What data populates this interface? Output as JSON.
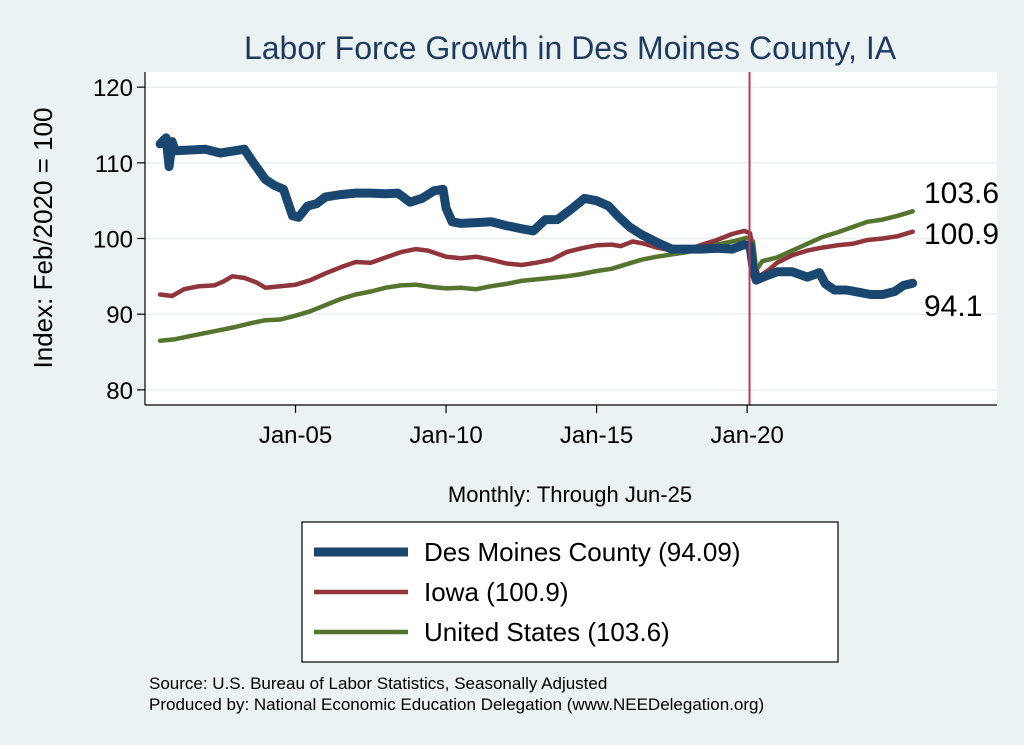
{
  "chart_data": {
    "type": "line",
    "title": "Labor Force Growth in Des Moines  County, IA",
    "xlabel": "Monthly: Through Jun-25",
    "ylabel": "Index: Feb/2020 = 100",
    "x_range": [
      2000.0,
      2028.3
    ],
    "ylim": [
      78,
      122
    ],
    "y_ticks": [
      80,
      90,
      100,
      110,
      120
    ],
    "x_ticks": [
      {
        "x": 2005.0,
        "label": "Jan-05"
      },
      {
        "x": 2010.0,
        "label": "Jan-10"
      },
      {
        "x": 2015.0,
        "label": "Jan-15"
      },
      {
        "x": 2020.0,
        "label": "Jan-20"
      }
    ],
    "vline": {
      "x": 2020.08,
      "color": "#c0395a"
    },
    "grid": true,
    "legend_position": "bottom",
    "series": [
      {
        "name": "Des Moines  County (94.09)",
        "color": "#1a476f",
        "end_label": "94.1",
        "points": [
          [
            2000.5,
            112.5
          ],
          [
            2000.7,
            113.3
          ],
          [
            2000.8,
            109.5
          ],
          [
            2000.9,
            112.8
          ],
          [
            2001.0,
            111.6
          ],
          [
            2001.5,
            111.7
          ],
          [
            2002.0,
            111.8
          ],
          [
            2002.5,
            111.3
          ],
          [
            2003.0,
            111.6
          ],
          [
            2003.3,
            111.8
          ],
          [
            2003.6,
            110.0
          ],
          [
            2004.0,
            107.8
          ],
          [
            2004.3,
            107.0
          ],
          [
            2004.6,
            106.5
          ],
          [
            2004.9,
            103.0
          ],
          [
            2005.1,
            102.8
          ],
          [
            2005.4,
            104.3
          ],
          [
            2005.7,
            104.6
          ],
          [
            2006.0,
            105.5
          ],
          [
            2006.5,
            105.8
          ],
          [
            2007.0,
            106.0
          ],
          [
            2007.5,
            106.0
          ],
          [
            2008.0,
            105.9
          ],
          [
            2008.4,
            106.0
          ],
          [
            2008.8,
            104.8
          ],
          [
            2009.2,
            105.3
          ],
          [
            2009.6,
            106.3
          ],
          [
            2009.9,
            106.5
          ],
          [
            2010.0,
            104.0
          ],
          [
            2010.2,
            102.2
          ],
          [
            2010.5,
            102.0
          ],
          [
            2011.0,
            102.1
          ],
          [
            2011.5,
            102.2
          ],
          [
            2012.0,
            101.7
          ],
          [
            2012.5,
            101.3
          ],
          [
            2012.9,
            101.0
          ],
          [
            2013.3,
            102.5
          ],
          [
            2013.7,
            102.5
          ],
          [
            2014.2,
            104.0
          ],
          [
            2014.6,
            105.3
          ],
          [
            2015.0,
            105.0
          ],
          [
            2015.4,
            104.3
          ],
          [
            2015.7,
            103.0
          ],
          [
            2016.1,
            101.5
          ],
          [
            2016.5,
            100.5
          ],
          [
            2017.0,
            99.5
          ],
          [
            2017.5,
            98.6
          ],
          [
            2018.0,
            98.6
          ],
          [
            2018.5,
            98.6
          ],
          [
            2019.0,
            98.7
          ],
          [
            2019.5,
            98.6
          ],
          [
            2019.9,
            99.2
          ],
          [
            2020.1,
            99.0
          ],
          [
            2020.2,
            96.0
          ],
          [
            2020.3,
            94.5
          ],
          [
            2020.6,
            95.0
          ],
          [
            2021.0,
            95.6
          ],
          [
            2021.5,
            95.6
          ],
          [
            2022.0,
            94.9
          ],
          [
            2022.4,
            95.5
          ],
          [
            2022.6,
            94.0
          ],
          [
            2022.9,
            93.2
          ],
          [
            2023.3,
            93.2
          ],
          [
            2023.7,
            92.9
          ],
          [
            2024.1,
            92.6
          ],
          [
            2024.5,
            92.6
          ],
          [
            2024.9,
            93.0
          ],
          [
            2025.2,
            93.8
          ],
          [
            2025.5,
            94.1
          ]
        ]
      },
      {
        "name": "Iowa (100.9)",
        "color": "#90353b",
        "end_label": "100.9",
        "points": [
          [
            2000.5,
            92.6
          ],
          [
            2000.9,
            92.4
          ],
          [
            2001.3,
            93.3
          ],
          [
            2001.8,
            93.7
          ],
          [
            2002.3,
            93.8
          ],
          [
            2002.6,
            94.3
          ],
          [
            2002.9,
            95.0
          ],
          [
            2003.3,
            94.8
          ],
          [
            2003.7,
            94.2
          ],
          [
            2004.0,
            93.5
          ],
          [
            2004.5,
            93.7
          ],
          [
            2005.0,
            93.9
          ],
          [
            2005.5,
            94.5
          ],
          [
            2006.0,
            95.4
          ],
          [
            2006.5,
            96.2
          ],
          [
            2007.0,
            96.9
          ],
          [
            2007.5,
            96.8
          ],
          [
            2008.0,
            97.5
          ],
          [
            2008.5,
            98.2
          ],
          [
            2009.0,
            98.6
          ],
          [
            2009.4,
            98.4
          ],
          [
            2010.0,
            97.6
          ],
          [
            2010.5,
            97.4
          ],
          [
            2011.0,
            97.6
          ],
          [
            2011.5,
            97.2
          ],
          [
            2012.0,
            96.7
          ],
          [
            2012.5,
            96.5
          ],
          [
            2013.0,
            96.8
          ],
          [
            2013.5,
            97.2
          ],
          [
            2014.0,
            98.2
          ],
          [
            2014.5,
            98.7
          ],
          [
            2015.0,
            99.1
          ],
          [
            2015.5,
            99.2
          ],
          [
            2015.8,
            99.0
          ],
          [
            2016.2,
            99.6
          ],
          [
            2016.6,
            99.3
          ],
          [
            2017.0,
            98.8
          ],
          [
            2017.5,
            98.4
          ],
          [
            2018.0,
            98.5
          ],
          [
            2018.5,
            99.2
          ],
          [
            2019.0,
            99.8
          ],
          [
            2019.5,
            100.6
          ],
          [
            2019.9,
            101.0
          ],
          [
            2020.1,
            100.7
          ],
          [
            2020.25,
            96.3
          ],
          [
            2020.4,
            95.0
          ],
          [
            2020.7,
            95.8
          ],
          [
            2021.0,
            96.8
          ],
          [
            2021.5,
            97.8
          ],
          [
            2022.0,
            98.4
          ],
          [
            2022.5,
            98.8
          ],
          [
            2023.0,
            99.1
          ],
          [
            2023.5,
            99.3
          ],
          [
            2024.0,
            99.8
          ],
          [
            2024.5,
            100.0
          ],
          [
            2025.0,
            100.3
          ],
          [
            2025.5,
            100.9
          ]
        ]
      },
      {
        "name": "United States (103.6)",
        "color": "#55752f",
        "end_label": "103.6",
        "points": [
          [
            2000.5,
            86.5
          ],
          [
            2001.0,
            86.7
          ],
          [
            2001.5,
            87.1
          ],
          [
            2002.0,
            87.5
          ],
          [
            2002.5,
            87.9
          ],
          [
            2003.0,
            88.3
          ],
          [
            2003.5,
            88.8
          ],
          [
            2004.0,
            89.2
          ],
          [
            2004.5,
            89.3
          ],
          [
            2005.0,
            89.8
          ],
          [
            2005.5,
            90.4
          ],
          [
            2006.0,
            91.2
          ],
          [
            2006.5,
            92.0
          ],
          [
            2007.0,
            92.6
          ],
          [
            2007.5,
            93.0
          ],
          [
            2008.0,
            93.5
          ],
          [
            2008.5,
            93.8
          ],
          [
            2009.0,
            93.9
          ],
          [
            2009.5,
            93.6
          ],
          [
            2010.0,
            93.4
          ],
          [
            2010.5,
            93.5
          ],
          [
            2011.0,
            93.3
          ],
          [
            2011.5,
            93.7
          ],
          [
            2012.0,
            94.0
          ],
          [
            2012.5,
            94.4
          ],
          [
            2013.0,
            94.6
          ],
          [
            2013.5,
            94.8
          ],
          [
            2014.0,
            95.0
          ],
          [
            2014.5,
            95.3
          ],
          [
            2015.0,
            95.7
          ],
          [
            2015.5,
            96.0
          ],
          [
            2016.0,
            96.6
          ],
          [
            2016.5,
            97.2
          ],
          [
            2017.0,
            97.6
          ],
          [
            2017.5,
            97.9
          ],
          [
            2018.0,
            98.2
          ],
          [
            2018.5,
            98.7
          ],
          [
            2019.0,
            99.2
          ],
          [
            2019.5,
            99.6
          ],
          [
            2020.0,
            100.1
          ],
          [
            2020.2,
            99.6
          ],
          [
            2020.3,
            95.8
          ],
          [
            2020.5,
            97.0
          ],
          [
            2021.0,
            97.5
          ],
          [
            2021.5,
            98.4
          ],
          [
            2022.0,
            99.3
          ],
          [
            2022.5,
            100.2
          ],
          [
            2023.0,
            100.8
          ],
          [
            2023.5,
            101.5
          ],
          [
            2024.0,
            102.2
          ],
          [
            2024.5,
            102.5
          ],
          [
            2025.0,
            103.0
          ],
          [
            2025.5,
            103.6
          ]
        ]
      }
    ]
  },
  "source": {
    "line1": "Source: U.S. Bureau of Labor Statistics, Seasonally Adjusted",
    "line2": "Produced by: National Economic Education Delegation (www.NEEDelegation.org)"
  },
  "colors": {
    "background": "#eaf2f3",
    "plot_background": "#ffffff",
    "grid": "#e8efef"
  }
}
